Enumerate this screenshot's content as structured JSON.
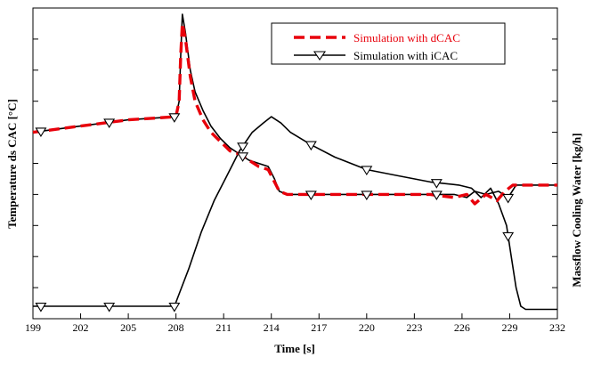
{
  "chart_data": {
    "type": "line",
    "title": "",
    "xlabel": "Time [s]",
    "ylabel_left": "Temperature ds CAC [°C]",
    "ylabel_right": "Massflow Cooling Water [kg/h]",
    "xlim": [
      199,
      232
    ],
    "xticks": [
      "199",
      "202",
      "205",
      "208",
      "211",
      "214",
      "217",
      "220",
      "223",
      "226",
      "229",
      "232"
    ],
    "xtick_values": [
      199,
      202,
      205,
      208,
      211,
      214,
      217,
      220,
      223,
      226,
      229,
      232
    ],
    "y_tick_labels": "none",
    "legend_position": "top-right",
    "series": [
      {
        "name": "Simulation with dCAC",
        "color": "#e8000b",
        "style": "dashed",
        "marker": "none",
        "points": [
          [
            199,
            0.4
          ],
          [
            202,
            0.38
          ],
          [
            205,
            0.36
          ],
          [
            208,
            0.35
          ],
          [
            208.2,
            0.3
          ],
          [
            208.3,
            0.15
          ],
          [
            208.4,
            0.05
          ],
          [
            208.6,
            0.1
          ],
          [
            208.9,
            0.22
          ],
          [
            209.2,
            0.3
          ],
          [
            209.7,
            0.36
          ],
          [
            210.2,
            0.4
          ],
          [
            210.8,
            0.43
          ],
          [
            211.4,
            0.46
          ],
          [
            212,
            0.47
          ],
          [
            212.6,
            0.49
          ],
          [
            213.2,
            0.51
          ],
          [
            213.8,
            0.52
          ],
          [
            214.2,
            0.56
          ],
          [
            214.5,
            0.59
          ],
          [
            215,
            0.6
          ],
          [
            217,
            0.6
          ],
          [
            220,
            0.6
          ],
          [
            222,
            0.6
          ],
          [
            224,
            0.6
          ],
          [
            225.5,
            0.61
          ],
          [
            226.3,
            0.6
          ],
          [
            226.8,
            0.63
          ],
          [
            227.5,
            0.6
          ],
          [
            228.2,
            0.62
          ],
          [
            228.7,
            0.59
          ],
          [
            229.2,
            0.57
          ],
          [
            230,
            0.57
          ],
          [
            232,
            0.57
          ]
        ]
      },
      {
        "name": "Simulation with iCAC",
        "color": "#000000",
        "style": "solid",
        "marker": "triangle-down",
        "markers_x": [
          199.5,
          203.8,
          207.9,
          212.2,
          216.5,
          220,
          224.4,
          228.9
        ],
        "points": [
          [
            199,
            0.4
          ],
          [
            202,
            0.38
          ],
          [
            205,
            0.36
          ],
          [
            208,
            0.35
          ],
          [
            208.2,
            0.3
          ],
          [
            208.3,
            0.15
          ],
          [
            208.4,
            0.02
          ],
          [
            208.6,
            0.08
          ],
          [
            208.9,
            0.2
          ],
          [
            209.2,
            0.27
          ],
          [
            209.7,
            0.33
          ],
          [
            210.2,
            0.38
          ],
          [
            210.8,
            0.42
          ],
          [
            211.4,
            0.45
          ],
          [
            212,
            0.47
          ],
          [
            212.6,
            0.49
          ],
          [
            213.2,
            0.5
          ],
          [
            213.8,
            0.51
          ],
          [
            214.2,
            0.55
          ],
          [
            214.5,
            0.59
          ],
          [
            215,
            0.6
          ],
          [
            217,
            0.6
          ],
          [
            220,
            0.6
          ],
          [
            222,
            0.6
          ],
          [
            224,
            0.6
          ],
          [
            225.5,
            0.6
          ],
          [
            226.3,
            0.61
          ],
          [
            226.8,
            0.59
          ],
          [
            227.5,
            0.6
          ],
          [
            228.3,
            0.59
          ],
          [
            228.9,
            0.61
          ],
          [
            229.4,
            0.57
          ],
          [
            230,
            0.57
          ],
          [
            232,
            0.57
          ]
        ]
      },
      {
        "name": "",
        "color": "#000000",
        "style": "solid",
        "marker": "triangle-down",
        "axis": "right",
        "markers_x": [
          199.5,
          203.8,
          207.9,
          212.2,
          216.5,
          220,
          224.4,
          228.9
        ],
        "points": [
          [
            199,
            0.96
          ],
          [
            207.9,
            0.96
          ],
          [
            208.2,
            0.92
          ],
          [
            208.8,
            0.84
          ],
          [
            209.6,
            0.72
          ],
          [
            210.4,
            0.62
          ],
          [
            211.2,
            0.54
          ],
          [
            212,
            0.46
          ],
          [
            212.8,
            0.4
          ],
          [
            213.5,
            0.37
          ],
          [
            214,
            0.35
          ],
          [
            214.6,
            0.37
          ],
          [
            215.2,
            0.4
          ],
          [
            216.5,
            0.44
          ],
          [
            218,
            0.48
          ],
          [
            220,
            0.52
          ],
          [
            222,
            0.54
          ],
          [
            224,
            0.56
          ],
          [
            225.8,
            0.57
          ],
          [
            226.6,
            0.58
          ],
          [
            227.2,
            0.61
          ],
          [
            227.8,
            0.58
          ],
          [
            228.3,
            0.63
          ],
          [
            228.8,
            0.7
          ],
          [
            229.1,
            0.8
          ],
          [
            229.4,
            0.9
          ],
          [
            229.7,
            0.96
          ],
          [
            230,
            0.97
          ],
          [
            232,
            0.97
          ]
        ]
      }
    ]
  }
}
